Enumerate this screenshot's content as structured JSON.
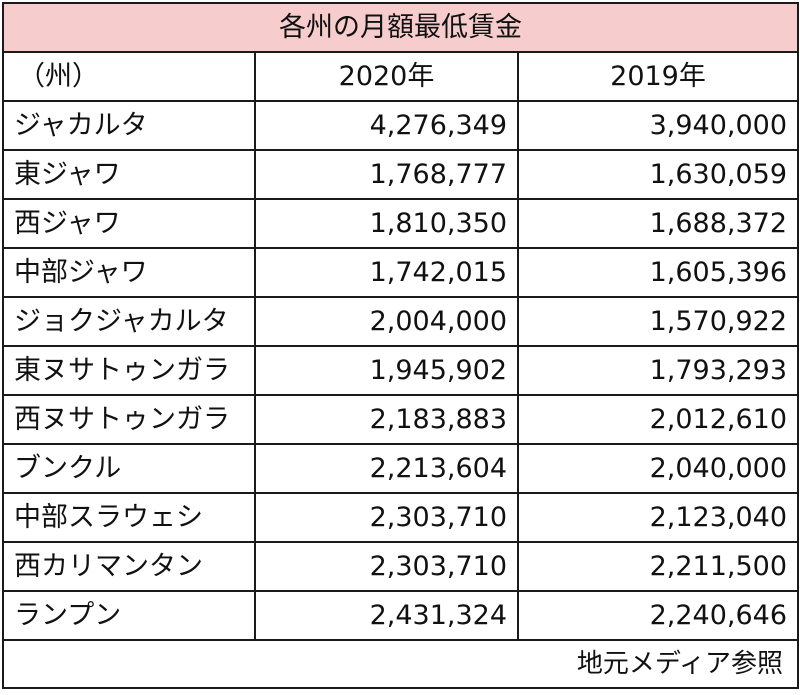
{
  "title": "各州の月額最低賃金",
  "headers": {
    "state": "（州）",
    "year_2020": "2020年",
    "year_2019": "2019年"
  },
  "rows": [
    {
      "state": "ジャカルタ",
      "v2020": "4,276,349",
      "v2019": "3,940,000"
    },
    {
      "state": "東ジャワ",
      "v2020": "1,768,777",
      "v2019": "1,630,059"
    },
    {
      "state": "西ジャワ",
      "v2020": "1,810,350",
      "v2019": "1,688,372"
    },
    {
      "state": "中部ジャワ",
      "v2020": "1,742,015",
      "v2019": "1,605,396"
    },
    {
      "state": "ジョクジャカルタ",
      "v2020": "2,004,000",
      "v2019": "1,570,922"
    },
    {
      "state": "東ヌサトゥンガラ",
      "v2020": "1,945,902",
      "v2019": "1,793,293"
    },
    {
      "state": "西ヌサトゥンガラ",
      "v2020": "2,183,883",
      "v2019": "2,012,610"
    },
    {
      "state": "ブンクル",
      "v2020": "2,213,604",
      "v2019": "2,040,000"
    },
    {
      "state": "中部スラウェシ",
      "v2020": "2,303,710",
      "v2019": "2,123,040"
    },
    {
      "state": "西カリマンタン",
      "v2020": "2,303,710",
      "v2019": "2,211,500"
    },
    {
      "state": "ランプン",
      "v2020": "2,431,324",
      "v2019": "2,240,646"
    }
  ],
  "source_note": "地元メディア参照",
  "colors": {
    "title_bg": "#f6cccc",
    "border": "#1a1a1a"
  }
}
